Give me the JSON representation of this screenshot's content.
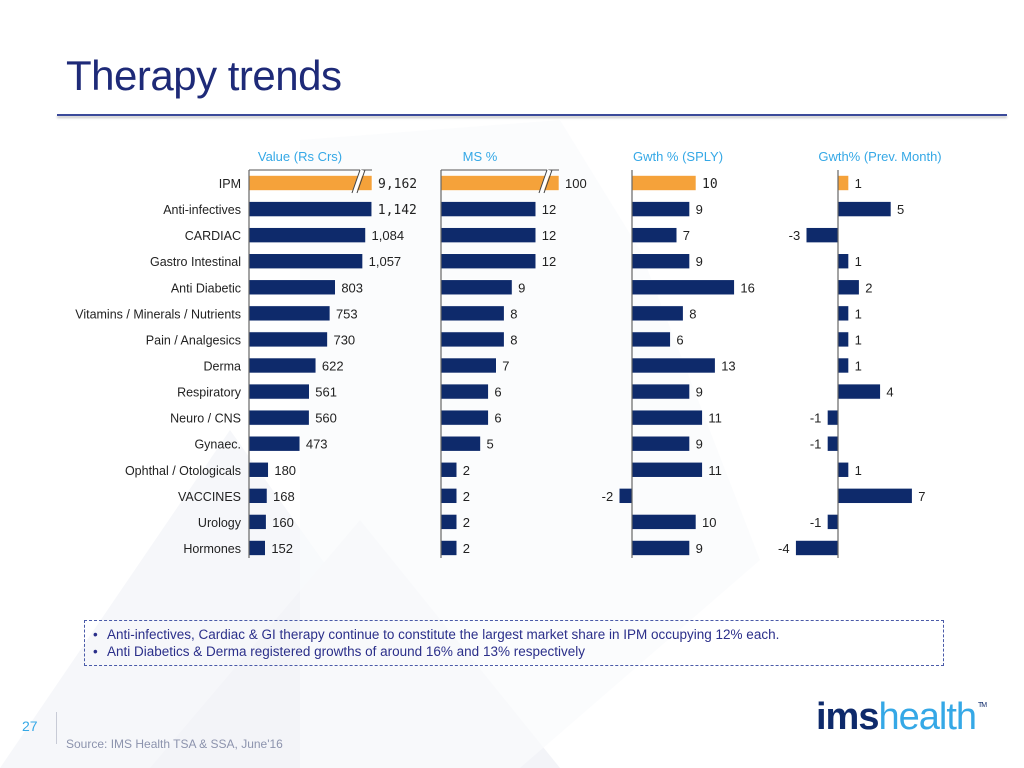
{
  "slide": {
    "title": "Therapy trends",
    "page_number": "27",
    "source": "Source: IMS Health TSA & SSA, June'16",
    "logo": {
      "bold": "ims",
      "light": "health",
      "tm": "TM"
    },
    "notes": [
      "Anti-infectives, Cardiac & GI therapy continue to constitute the largest market share in IPM occupying 12% each.",
      "Anti Diabetics & Derma registered growths of around 16% and 13% respectively"
    ],
    "bullet": "•"
  },
  "colors": {
    "highlight_bar": "#f5a23a",
    "bar": "#0e2a6b",
    "panel_title": "#35a8e6",
    "title": "#1e2a78"
  },
  "chart_data": [
    {
      "type": "bar",
      "orientation": "horizontal",
      "title": "Value (Rs Crs)",
      "categories": [
        "IPM",
        "Anti-infectives",
        "CARDIAC",
        "Gastro Intestinal",
        "Anti Diabetic",
        "Vitamins / Minerals / Nutrients",
        "Pain / Analgesics",
        "Derma",
        "Respiratory",
        "Neuro / CNS",
        "Gynaec.",
        "Ophthal / Otologicals",
        "VACCINES",
        "Urology",
        "Hormones"
      ],
      "values": [
        9162,
        1142,
        1084,
        1057,
        803,
        753,
        730,
        622,
        561,
        560,
        473,
        180,
        168,
        160,
        152
      ],
      "labels": [
        "9,162",
        "1,142",
        "1,084",
        "1,057",
        "803",
        "753",
        "730",
        "622",
        "561",
        "560",
        "473",
        "180",
        "168",
        "160",
        "152"
      ],
      "highlight_index": 0,
      "axis_break": true,
      "xlim": [
        0,
        1200
      ]
    },
    {
      "type": "bar",
      "orientation": "horizontal",
      "title": "MS %",
      "values": [
        100,
        12,
        12,
        12,
        9,
        8,
        8,
        7,
        6,
        6,
        5,
        2,
        2,
        2,
        2
      ],
      "labels": [
        "100",
        "12",
        "12",
        "12",
        "9",
        "8",
        "8",
        "7",
        "6",
        "6",
        "5",
        "2",
        "2",
        "2",
        "2"
      ],
      "highlight_index": 0,
      "axis_break": true,
      "xlim": [
        0,
        12.8
      ]
    },
    {
      "type": "bar",
      "orientation": "horizontal",
      "title": "Gwth % (SPLY)",
      "values": [
        10,
        9,
        7,
        9,
        16,
        8,
        6,
        13,
        9,
        11,
        9,
        11,
        -2,
        10,
        9
      ],
      "labels": [
        "10",
        "9",
        "7",
        "9",
        "16",
        "8",
        "6",
        "13",
        "9",
        "11",
        "9",
        "11",
        "-2",
        "10",
        "9"
      ],
      "highlight_index": 0,
      "axis_break": false,
      "xlim": [
        -2,
        16
      ]
    },
    {
      "type": "bar",
      "orientation": "horizontal",
      "title": "Gwth% (Prev. Month)",
      "values": [
        1,
        5,
        -3,
        1,
        2,
        1,
        1,
        1,
        4,
        -1,
        -1,
        1,
        7,
        -1,
        -4
      ],
      "labels": [
        "1",
        "5",
        "-3",
        "1",
        "2",
        "1",
        "1",
        "1",
        "4",
        "-1",
        "-1",
        "1",
        "7",
        "-1",
        "-4"
      ],
      "highlight_index": 0,
      "axis_break": false,
      "xlim": [
        -4,
        7
      ]
    }
  ]
}
